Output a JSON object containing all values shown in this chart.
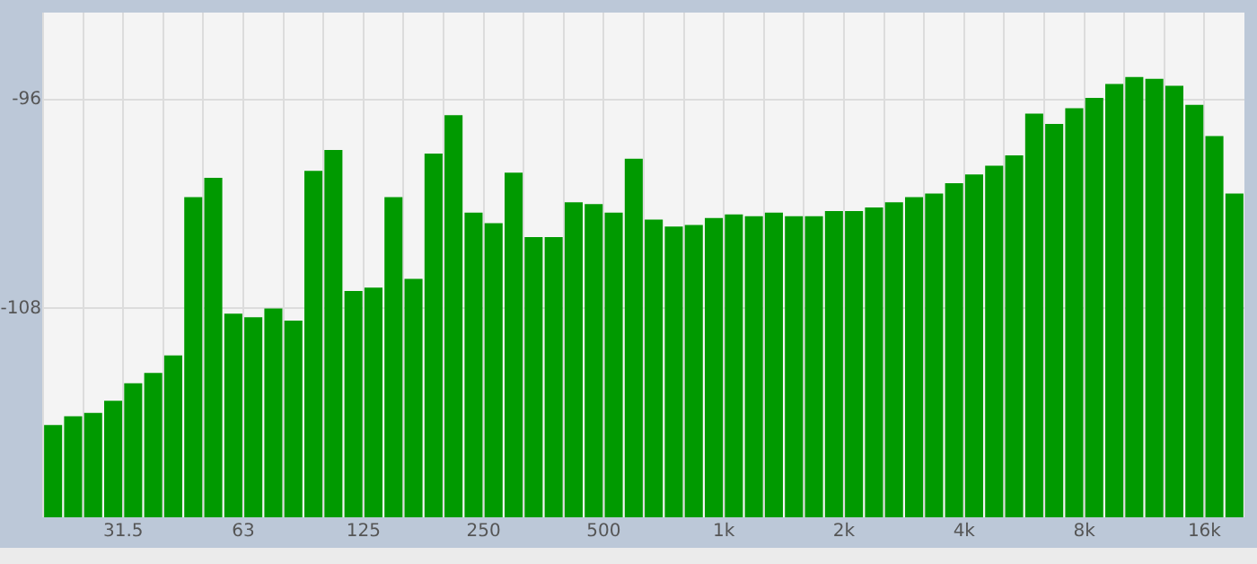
{
  "chart_data": {
    "type": "bar",
    "categories": [
      null,
      null,
      null,
      null,
      "31.5",
      null,
      null,
      null,
      null,
      null,
      "63",
      null,
      null,
      null,
      null,
      null,
      "125",
      null,
      null,
      null,
      null,
      null,
      "250",
      null,
      null,
      null,
      null,
      null,
      "500",
      null,
      null,
      null,
      null,
      null,
      "1k",
      null,
      null,
      null,
      null,
      null,
      "2k",
      null,
      null,
      null,
      null,
      null,
      "4k",
      null,
      null,
      null,
      null,
      null,
      "8k",
      null,
      null,
      null,
      null,
      null,
      "16k",
      null
    ],
    "base": [
      -120,
      -120,
      -120,
      -120,
      -120,
      -120,
      -120,
      -120,
      -120,
      -120,
      -120,
      -120,
      -120,
      -120,
      -120,
      -120,
      -120,
      -120,
      -120,
      -120,
      -120,
      -120,
      -120,
      -120,
      -120,
      -120,
      -120,
      -120,
      -120,
      -120,
      -120,
      -120,
      -120,
      -120,
      -120,
      -120,
      -120,
      -120,
      -120,
      -120,
      -120,
      -120,
      -120,
      -120,
      -120,
      -120,
      -120,
      -120,
      -120,
      -120,
      -120,
      -120,
      -120,
      -120,
      -120,
      -120,
      -120,
      -120,
      -120,
      -120
    ],
    "values": [
      5.3,
      5.8,
      6.0,
      6.7,
      7.7,
      8.3,
      9.3,
      18.4,
      19.5,
      11.7,
      11.5,
      12.0,
      11.3,
      19.9,
      21.1,
      13.0,
      13.2,
      18.4,
      13.7,
      20.9,
      23.1,
      17.5,
      16.9,
      19.8,
      16.1,
      16.1,
      18.1,
      18.0,
      17.5,
      20.6,
      17.1,
      16.7,
      16.8,
      17.2,
      17.4,
      17.3,
      17.5,
      17.3,
      17.3,
      17.6,
      17.6,
      17.8,
      18.1,
      18.4,
      18.6,
      19.2,
      19.7,
      20.2,
      20.8,
      23.2,
      22.6,
      23.5,
      24.1,
      24.9,
      25.3,
      25.2,
      24.8,
      23.7,
      21.9,
      18.6
    ],
    "color": "#009a00",
    "ylim": [
      -120,
      -91
    ],
    "yticks": [
      -96,
      -108
    ],
    "grid": true,
    "legend": false
  }
}
